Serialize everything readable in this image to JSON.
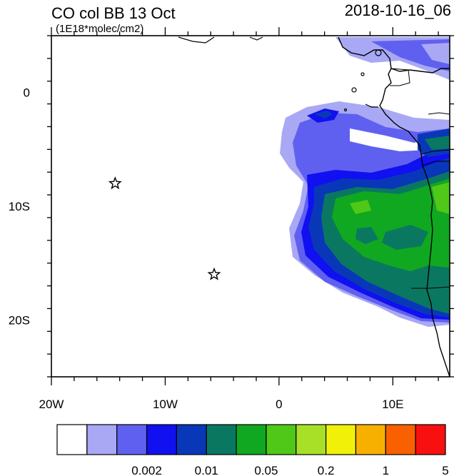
{
  "header": {
    "title": "CO col BB 13 Oct",
    "units": "(1E18*molec/cm2)",
    "datetime": "2018-10-16_06"
  },
  "map": {
    "lon_range": [
      -20,
      15
    ],
    "lat_range": [
      -25,
      5
    ],
    "x_ticks": [
      {
        "value": -20,
        "label": "20W"
      },
      {
        "value": -10,
        "label": "10W"
      },
      {
        "value": 0,
        "label": "0"
      },
      {
        "value": 10,
        "label": "10E"
      }
    ],
    "y_ticks": [
      {
        "value": 0,
        "label": "0"
      },
      {
        "value": -10,
        "label": "10S"
      },
      {
        "value": -20,
        "label": "20S"
      }
    ],
    "markers": [
      {
        "type": "star",
        "lon": -14.4,
        "lat": -8.0
      },
      {
        "type": "star",
        "lon": -5.7,
        "lat": -16.0
      }
    ]
  },
  "colorbar": {
    "colors": [
      "#ffffff",
      "#a8a8f5",
      "#6060f0",
      "#1010f0",
      "#0838b8",
      "#0a7860",
      "#10a820",
      "#50c818",
      "#a8e028",
      "#f0f008",
      "#f8b000",
      "#f86000",
      "#f81010"
    ],
    "labels": [
      {
        "after_index": 2,
        "text": "0.002"
      },
      {
        "after_index": 4,
        "text": "0.01"
      },
      {
        "after_index": 6,
        "text": "0.05"
      },
      {
        "after_index": 8,
        "text": "0.2"
      },
      {
        "after_index": 10,
        "text": "1"
      },
      {
        "after_index": 12,
        "text": "5"
      }
    ]
  }
}
